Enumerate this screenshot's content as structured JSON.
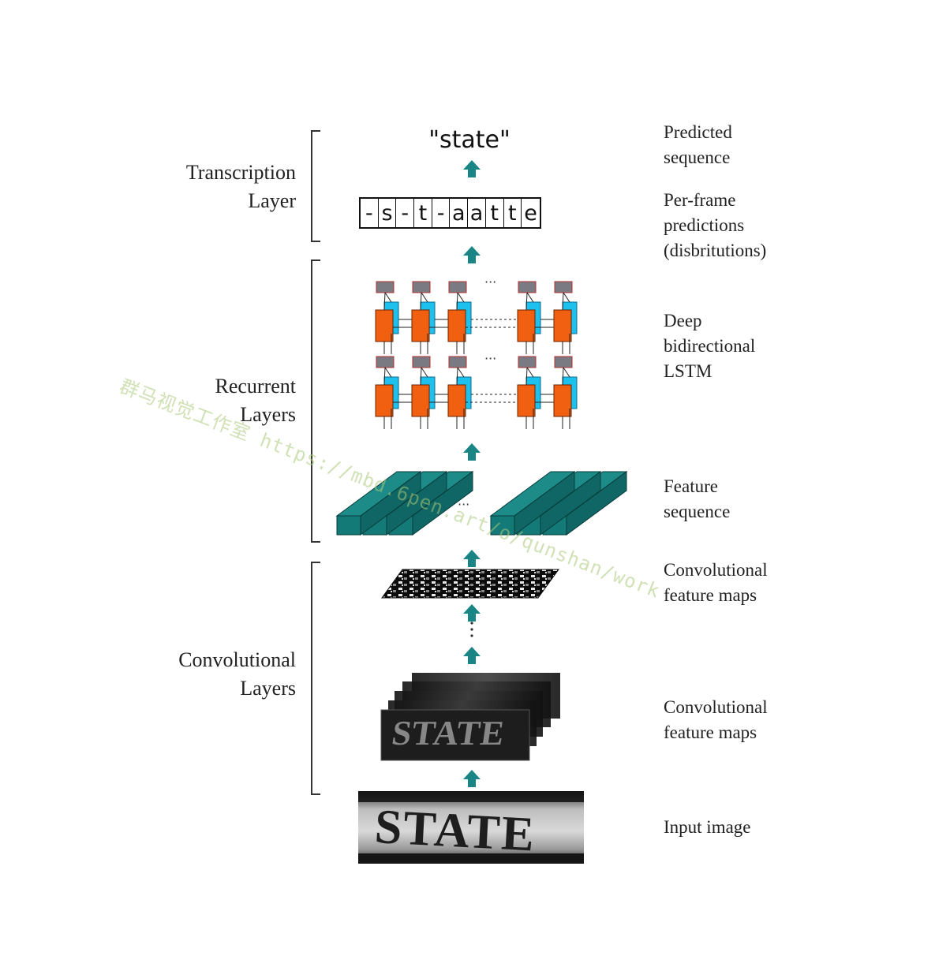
{
  "left_labels": {
    "transcription": [
      "Transcription",
      "Layer"
    ],
    "recurrent": [
      "Recurrent",
      "Layers"
    ],
    "convolutional": [
      "Convolutional",
      "Layers"
    ]
  },
  "right_labels": {
    "predicted": [
      "Predicted",
      "sequence"
    ],
    "per_frame": [
      "Per-frame",
      "predictions",
      "(disbritutions)"
    ],
    "lstm": [
      "Deep",
      "bidirectional",
      "LSTM"
    ],
    "feature_seq": [
      "Feature",
      "sequence"
    ],
    "conv_maps_top": [
      "Convolutional",
      "feature maps"
    ],
    "conv_maps_bottom": [
      "Convolutional",
      "feature maps"
    ],
    "input": [
      "Input image"
    ]
  },
  "predicted_text": "\"state\"",
  "per_frame_chars": [
    "-",
    "s",
    "-",
    "t",
    "-",
    "a",
    "a",
    "t",
    "t",
    "e"
  ],
  "input_image_text": "STATE",
  "ellipsis": "···",
  "watermark": "群马视觉工作室 https://mbd.6pen.art/o/qunshan/work",
  "colors": {
    "arrow": "#1a8585",
    "lstm_forward": "#f06010",
    "lstm_backward": "#1ec0ee",
    "lstm_output": "#7a7a82",
    "feature_column": "#137a78"
  }
}
